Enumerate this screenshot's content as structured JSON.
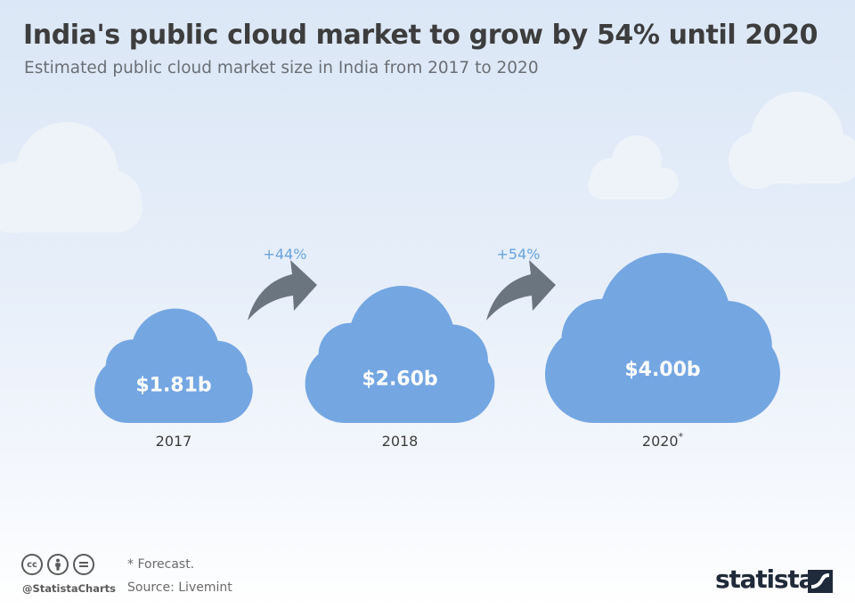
{
  "chart_data": {
    "type": "bar",
    "title": "India's public cloud market to grow by 54% until 2020",
    "subtitle": "Estimated public cloud market size in India from 2017 to 2020",
    "categories": [
      "2017",
      "2018",
      "2020"
    ],
    "category_marks": [
      "",
      "",
      "*"
    ],
    "values": [
      1.81,
      2.6,
      4.0
    ],
    "value_labels": [
      "$1.81b",
      "$2.60b",
      "$4.00b"
    ],
    "unit": "billion U.S. dollars",
    "growth_labels": [
      "+44%",
      "+54%"
    ],
    "xlabel": "",
    "ylabel": "",
    "grid": false,
    "legend": "none"
  },
  "colors": {
    "cloud_fill": "#74a6e2",
    "cloud_value_text": "#ffffff",
    "growth_text": "#6aa3dd",
    "arrow_fill": "#6b7580",
    "background_cloud": "#eef3fa",
    "title_text": "#3d3d3d"
  },
  "footer": {
    "note": "* Forecast.",
    "source": "Source: Livemint",
    "handle": "@StatistaCharts",
    "brand": "statista",
    "license_icons": [
      "cc-icon",
      "by-icon",
      "nd-icon"
    ]
  }
}
